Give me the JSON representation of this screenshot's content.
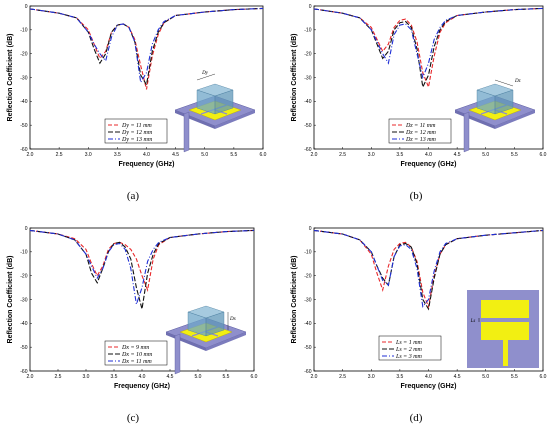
{
  "colors": {
    "red": "#e8282b",
    "black": "#111111",
    "blue": "#1f2fd6",
    "substrate": "#8f8fcc",
    "patch": "#f2ef12",
    "dielectric": "#6ea6c8"
  },
  "chart_data": [
    {
      "type": "line",
      "label": "(a)",
      "xlabel": "Frequency (GHz)",
      "ylabel": "Reflection Coefficient (dB)",
      "xlim": [
        2.0,
        6.0
      ],
      "ylim": [
        -60,
        0
      ],
      "xticks": [
        "2.0",
        "2.5",
        "3.0",
        "3.5",
        "4.0",
        "4.5",
        "5.0",
        "5.5",
        "6.0"
      ],
      "yticks": [
        "0",
        "-10",
        "-20",
        "-30",
        "-40",
        "-50",
        "-60"
      ],
      "inset_label": "Dy",
      "series": [
        {
          "name": "Dy = 11 mm",
          "style": "red",
          "x": [
            2.0,
            2.5,
            2.8,
            3.0,
            3.1,
            3.2,
            3.3,
            3.4,
            3.5,
            3.6,
            3.7,
            3.8,
            3.9,
            4.0,
            4.1,
            4.2,
            4.3,
            4.5,
            5.0,
            5.5,
            6.0
          ],
          "y": [
            -1.2,
            -3,
            -5,
            -10,
            -16,
            -22,
            -19,
            -11,
            -8,
            -7.5,
            -9,
            -14,
            -25,
            -35,
            -21,
            -12,
            -7,
            -4,
            -2.5,
            -1.5,
            -1.0
          ]
        },
        {
          "name": "Dy = 12 mm",
          "style": "black",
          "x": [
            2.0,
            2.5,
            2.8,
            3.0,
            3.1,
            3.2,
            3.3,
            3.4,
            3.5,
            3.6,
            3.7,
            3.8,
            3.9,
            4.0,
            4.1,
            4.2,
            4.3,
            4.5,
            5.0,
            5.5,
            6.0
          ],
          "y": [
            -1.2,
            -3,
            -5,
            -11,
            -18,
            -24,
            -20,
            -11,
            -8,
            -7.5,
            -9,
            -15,
            -29,
            -33,
            -19,
            -11,
            -7,
            -4,
            -2.5,
            -1.5,
            -1.0
          ]
        },
        {
          "name": "Dy = 13 mm",
          "style": "blue",
          "x": [
            2.0,
            2.5,
            2.8,
            3.0,
            3.1,
            3.2,
            3.3,
            3.4,
            3.5,
            3.6,
            3.7,
            3.8,
            3.9,
            4.0,
            4.1,
            4.2,
            4.3,
            4.5,
            5.0,
            5.5,
            6.0
          ],
          "y": [
            -1.2,
            -3,
            -5,
            -11,
            -16,
            -20,
            -23,
            -13,
            -8,
            -7.5,
            -9,
            -15,
            -32,
            -28,
            -16,
            -10,
            -6.5,
            -4,
            -2.5,
            -1.5,
            -1.0
          ]
        }
      ]
    },
    {
      "type": "line",
      "label": "(b)",
      "xlabel": "Frequency (GHz)",
      "ylabel": "Reflection Coefficient (dB)",
      "xlim": [
        2.0,
        6.0
      ],
      "ylim": [
        -60,
        0
      ],
      "xticks": [
        "2.0",
        "2.5",
        "3.0",
        "3.5",
        "4.0",
        "4.5",
        "5.0",
        "5.5",
        "6.0"
      ],
      "yticks": [
        "0",
        "-10",
        "-20",
        "-30",
        "-40",
        "-50",
        "-60"
      ],
      "inset_label": "Dz",
      "series": [
        {
          "name": "Dz = 11 mm",
          "style": "red",
          "x": [
            2.0,
            2.5,
            2.8,
            3.0,
            3.1,
            3.2,
            3.3,
            3.4,
            3.5,
            3.6,
            3.7,
            3.8,
            3.9,
            4.0,
            4.1,
            4.2,
            4.3,
            4.5,
            5.0,
            5.5,
            6.0
          ],
          "y": [
            -1.2,
            -3,
            -5,
            -9,
            -14,
            -19,
            -16,
            -9,
            -6,
            -5.5,
            -8,
            -15,
            -28,
            -34,
            -21,
            -11,
            -7,
            -4,
            -2.5,
            -1.5,
            -1.0
          ]
        },
        {
          "name": "Dz = 12 mm",
          "style": "black",
          "x": [
            2.0,
            2.5,
            2.8,
            3.0,
            3.1,
            3.2,
            3.3,
            3.4,
            3.5,
            3.6,
            3.7,
            3.8,
            3.9,
            4.0,
            4.1,
            4.2,
            4.3,
            4.5,
            5.0,
            5.5,
            6.0
          ],
          "y": [
            -1.2,
            -3,
            -5,
            -10,
            -16,
            -22,
            -19,
            -10,
            -7,
            -6.5,
            -9,
            -18,
            -34,
            -29,
            -17,
            -10,
            -6.5,
            -4,
            -2.5,
            -1.5,
            -1.0
          ]
        },
        {
          "name": "Dz = 13 mm",
          "style": "blue",
          "x": [
            2.0,
            2.5,
            2.8,
            3.0,
            3.1,
            3.2,
            3.3,
            3.4,
            3.5,
            3.6,
            3.7,
            3.8,
            3.9,
            4.0,
            4.1,
            4.2,
            4.3,
            4.5,
            5.0,
            5.5,
            6.0
          ],
          "y": [
            -1.2,
            -3,
            -5,
            -10,
            -15,
            -20,
            -24,
            -12,
            -8,
            -7.5,
            -10,
            -20,
            -30,
            -24,
            -14,
            -9,
            -6,
            -4,
            -2.5,
            -1.5,
            -1.0
          ]
        }
      ]
    },
    {
      "type": "line",
      "label": "(c)",
      "xlabel": "Frequency (GHz)",
      "ylabel": "Reflection Coefficient (dB)",
      "xlim": [
        2.0,
        6.0
      ],
      "ylim": [
        -60,
        0
      ],
      "xticks": [
        "2.0",
        "2.5",
        "3.0",
        "3.5",
        "4.0",
        "4.5",
        "5.0",
        "5.5",
        "6.0"
      ],
      "yticks": [
        "0",
        "-10",
        "-20",
        "-30",
        "-40",
        "-50",
        "-60"
      ],
      "inset_label": "Dx",
      "series": [
        {
          "name": "Dx = 9 mm",
          "style": "red",
          "x": [
            2.0,
            2.5,
            2.8,
            3.0,
            3.1,
            3.2,
            3.3,
            3.4,
            3.5,
            3.6,
            3.7,
            3.8,
            3.9,
            4.0,
            4.1,
            4.2,
            4.3,
            4.5,
            5.0,
            5.5,
            6.0
          ],
          "y": [
            -1.0,
            -2.5,
            -4.5,
            -9,
            -15,
            -20,
            -16,
            -9,
            -6.5,
            -6,
            -7,
            -9,
            -13,
            -20,
            -26,
            -13,
            -7,
            -4,
            -2.5,
            -1.5,
            -1.0
          ]
        },
        {
          "name": "Dx = 10 mm",
          "style": "black",
          "x": [
            2.0,
            2.5,
            2.8,
            3.0,
            3.1,
            3.2,
            3.3,
            3.4,
            3.5,
            3.6,
            3.7,
            3.8,
            3.9,
            4.0,
            4.1,
            4.2,
            4.3,
            4.5,
            5.0,
            5.5,
            6.0
          ],
          "y": [
            -1.0,
            -2.5,
            -5,
            -11,
            -19,
            -23,
            -17,
            -10,
            -6.5,
            -6,
            -8,
            -13,
            -25,
            -34,
            -19,
            -11,
            -6.5,
            -4,
            -2.5,
            -1.5,
            -1.0
          ]
        },
        {
          "name": "Dx = 11 mm",
          "style": "blue",
          "x": [
            2.0,
            2.5,
            2.8,
            3.0,
            3.1,
            3.2,
            3.3,
            3.4,
            3.5,
            3.6,
            3.7,
            3.8,
            3.9,
            4.0,
            4.1,
            4.2,
            4.3,
            4.5,
            5.0,
            5.5,
            6.0
          ],
          "y": [
            -1.0,
            -2.5,
            -5,
            -11,
            -16,
            -21,
            -17,
            -10,
            -7,
            -6.5,
            -9,
            -17,
            -32,
            -25,
            -14,
            -9,
            -6,
            -4,
            -2.5,
            -1.5,
            -1.0
          ]
        }
      ]
    },
    {
      "type": "line",
      "label": "(d)",
      "xlabel": "Frequency (GHz)",
      "ylabel": "Reflection Coefficient (dB)",
      "xlim": [
        2.0,
        6.0
      ],
      "ylim": [
        -60,
        0
      ],
      "xticks": [
        "2.0",
        "2.5",
        "3.0",
        "3.5",
        "4.0",
        "4.5",
        "5.0",
        "5.5",
        "6.0"
      ],
      "yticks": [
        "0",
        "-10",
        "-20",
        "-30",
        "-40",
        "-50",
        "-60"
      ],
      "inset_label": "Ls",
      "series": [
        {
          "name": "Ls = 1 mm",
          "style": "red",
          "x": [
            2.0,
            2.5,
            2.8,
            3.0,
            3.1,
            3.2,
            3.3,
            3.4,
            3.5,
            3.6,
            3.7,
            3.8,
            3.9,
            4.0,
            4.1,
            4.2,
            4.3,
            4.5,
            5.0,
            5.5,
            6.0
          ],
          "y": [
            -1.0,
            -2.5,
            -5,
            -11,
            -19,
            -26,
            -16,
            -9,
            -6.5,
            -6,
            -8,
            -14,
            -27,
            -33,
            -20,
            -11,
            -7,
            -4.5,
            -3,
            -2,
            -1.0
          ]
        },
        {
          "name": "Ls = 2 mm",
          "style": "black",
          "x": [
            2.0,
            2.5,
            2.8,
            3.0,
            3.1,
            3.2,
            3.3,
            3.4,
            3.5,
            3.6,
            3.7,
            3.8,
            3.9,
            4.0,
            4.1,
            4.2,
            4.3,
            4.5,
            5.0,
            5.5,
            6.0
          ],
          "y": [
            -1.0,
            -2.5,
            -5,
            -10,
            -16,
            -21,
            -24,
            -12,
            -7,
            -6.5,
            -8,
            -15,
            -30,
            -34,
            -21,
            -11,
            -7,
            -4.5,
            -3,
            -2,
            -1.0
          ]
        },
        {
          "name": "Ls = 3 mm",
          "style": "blue",
          "x": [
            2.0,
            2.5,
            2.8,
            3.0,
            3.1,
            3.2,
            3.3,
            3.4,
            3.5,
            3.6,
            3.7,
            3.8,
            3.9,
            4.0,
            4.1,
            4.2,
            4.3,
            4.5,
            5.0,
            5.5,
            6.0
          ],
          "y": [
            -1.0,
            -2.5,
            -5,
            -10,
            -16,
            -22,
            -24,
            -12,
            -7.5,
            -7,
            -9,
            -17,
            -33,
            -30,
            -18,
            -10,
            -6.5,
            -4.5,
            -3,
            -2,
            -1.0
          ]
        }
      ]
    }
  ]
}
